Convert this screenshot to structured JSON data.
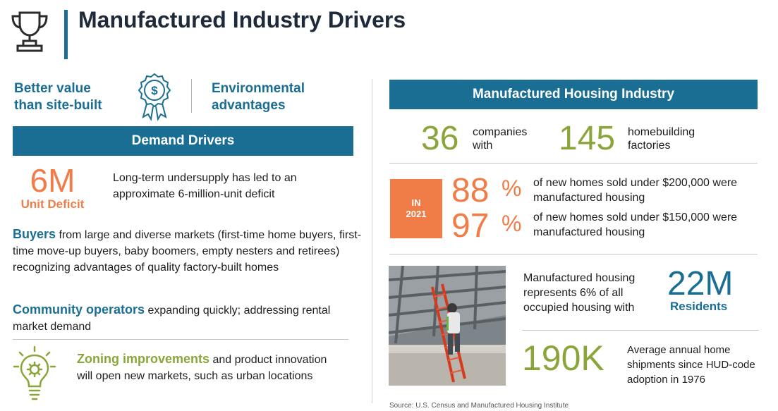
{
  "header": {
    "title": "Manufactured Industry Drivers",
    "icon": "trophy-icon"
  },
  "left": {
    "value_prop_1": "Better value than site-built",
    "value_prop_2": "Environmental advantages",
    "badge_icon": "dollar-badge-icon",
    "demand_bar": "Demand Drivers",
    "deficit": {
      "big": "6M",
      "label": "Unit Deficit",
      "text": "Long-term undersupply has led to an approximate 6-million-unit deficit"
    },
    "buyers": {
      "keyword": "Buyers",
      "text": " from large and diverse markets (first-time home buyers, first-time move-up buyers, baby boomers, empty nesters and retirees) recognizing advantages of quality factory-built homes"
    },
    "community": {
      "keyword": "Community operators",
      "text": " expanding quickly; addressing rental market demand"
    },
    "zoning": {
      "keyword": "Zoning improvements",
      "text": " and product innovation will open new markets,  such as urban locations",
      "icon": "lightbulb-gear-icon"
    }
  },
  "right": {
    "industry_bar": "Manufactured Housing Industry",
    "companies": {
      "num": "36",
      "label": "companies with"
    },
    "factories": {
      "num": "145",
      "label": "homebuilding factories"
    },
    "year_box": {
      "line1": "IN",
      "line2": "2021"
    },
    "stat_88": {
      "num": "88",
      "pct": "%",
      "text": "of new homes sold under $200,000 were manufactured housing"
    },
    "stat_97": {
      "num": "97",
      "pct": "%",
      "text": "of new homes sold under $150,000 were manufactured housing"
    },
    "occupied": {
      "text": "Manufactured housing represents 6% of all occupied housing with",
      "num": "22M",
      "label": "Residents"
    },
    "shipments": {
      "num": "190K",
      "text": "Average annual home shipments since HUD-code adoption in 1976"
    },
    "source": "Source:  U.S. Census and Manufactured Housing Institute"
  },
  "colors": {
    "teal": "#1a6e94",
    "green": "#8aa63a",
    "orange": "#f07c47",
    "navy": "#1e2a3a"
  }
}
